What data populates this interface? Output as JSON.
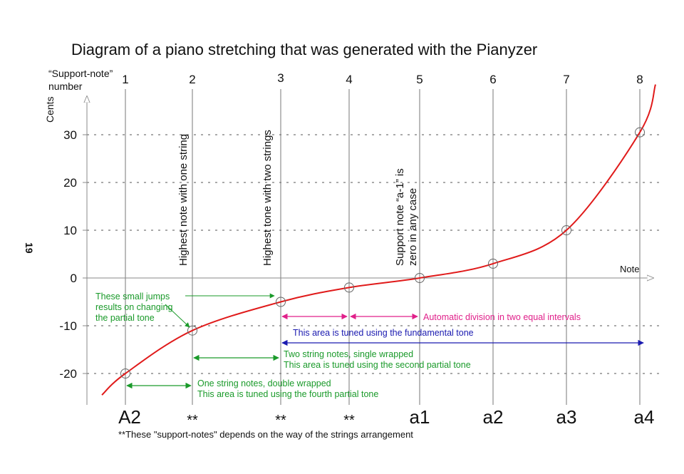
{
  "chart_data": {
    "type": "line",
    "title": "Diagram of a piano stretching that was generated with the Pianyzer",
    "ylabel": "Cents",
    "xlabel": "Note",
    "top_axis_label_line1": "“Support-note”",
    "top_axis_label_line2": "number",
    "page_number": "19",
    "ylim": [
      -26,
      38
    ],
    "y_ticks": [
      "30",
      "20",
      "10",
      "0",
      "-10",
      "-20"
    ],
    "grid": true,
    "support_notes": [
      "1",
      "2",
      "3",
      "4",
      "5",
      "6",
      "7",
      "8"
    ],
    "categories": [
      "A2",
      "**",
      "**",
      "**",
      "a1",
      "a2",
      "a3",
      "a4"
    ],
    "series": [
      {
        "values": [
          -20,
          -11,
          -5,
          -2,
          0,
          3,
          10,
          30.5
        ]
      }
    ],
    "vertical_labels": [
      "Highest note with one string",
      "Highest tone with two strings",
      "Support note “a-1” is",
      "zero in any case"
    ],
    "annotations": {
      "jumps_line1": "These small jumps",
      "jumps_line2": "results on changing",
      "jumps_line3": "the partial tone",
      "auto_division": "Automatic division in two equal intervals",
      "fundamental": "This area is tuned using the fundamental tone",
      "two_string_line1": "Two string notes, single wrapped",
      "two_string_line2": "This area is tuned using the second partial tone",
      "one_string_line1": "One string notes, double wrapped",
      "one_string_line2": "This area is tuned using the fourth partial tone"
    },
    "footnote": "**These \"support-notes\" depends on the way of the strings arrangement",
    "colors": {
      "curve": "#e01a1a",
      "green": "#1a9a2a",
      "magenta": "#e0208a",
      "blue": "#1a1ab0",
      "grid": "#555555",
      "axis": "#888888"
    }
  }
}
